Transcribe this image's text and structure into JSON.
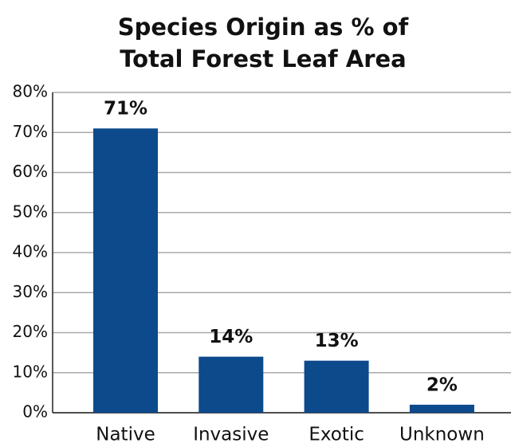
{
  "chart_data": {
    "type": "bar",
    "title": "Species Origin as % of Total Forest Leaf Area",
    "categories": [
      "Native",
      "Invasive",
      "Exotic",
      "Unknown"
    ],
    "values": [
      71,
      14,
      13,
      2
    ],
    "value_labels": [
      "71%",
      "14%",
      "13%",
      "2%"
    ],
    "color": "#0d4a8c",
    "ylim": [
      0,
      80
    ],
    "yticks": [
      {
        "value": 0,
        "label": "0%"
      },
      {
        "value": 10,
        "label": "10%"
      },
      {
        "value": 20,
        "label": "20%"
      },
      {
        "value": 30,
        "label": "30%"
      },
      {
        "value": 40,
        "label": "40%"
      },
      {
        "value": 50,
        "label": "50%"
      },
      {
        "value": 60,
        "label": "60%"
      },
      {
        "value": 70,
        "label": "70%"
      },
      {
        "value": 80,
        "label": "80%"
      }
    ],
    "grid": true
  }
}
